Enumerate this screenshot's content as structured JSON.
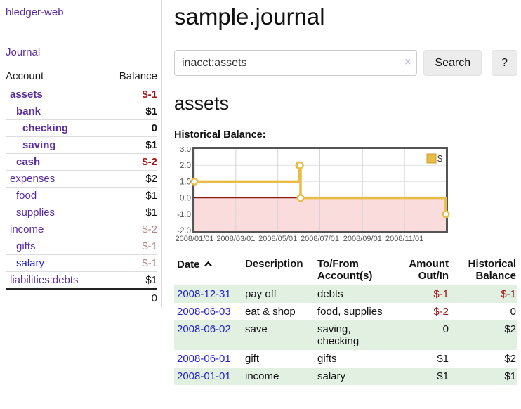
{
  "brand": "hledger-web",
  "nav": {
    "journal_label": "Journal"
  },
  "sidebar": {
    "headers": {
      "account": "Account",
      "balance": "Balance"
    },
    "accounts": [
      {
        "name": "assets",
        "balance": "$-1",
        "level": 0,
        "emph": true,
        "bal": "neg-strong"
      },
      {
        "name": "bank",
        "balance": "$1",
        "level": 1,
        "emph": true,
        "bal": "strong"
      },
      {
        "name": "checking",
        "balance": "0",
        "level": 2,
        "emph": true,
        "bal": "strong"
      },
      {
        "name": "saving",
        "balance": "$1",
        "level": 2,
        "emph": true,
        "bal": "strong"
      },
      {
        "name": "cash",
        "balance": "$-2",
        "level": 1,
        "emph": true,
        "bal": "neg-strong"
      },
      {
        "name": "expenses",
        "balance": "$2",
        "level": 0,
        "emph": false,
        "bal": "plain"
      },
      {
        "name": "food",
        "balance": "$1",
        "level": 1,
        "emph": false,
        "bal": "plain"
      },
      {
        "name": "supplies",
        "balance": "$1",
        "level": 1,
        "emph": false,
        "bal": "plain"
      },
      {
        "name": "income",
        "balance": "$-2",
        "level": 0,
        "emph": false,
        "bal": "neg-faint"
      },
      {
        "name": "gifts",
        "balance": "$-1",
        "level": 1,
        "emph": false,
        "bal": "neg-faint"
      },
      {
        "name": "salary",
        "balance": "$-1",
        "level": 1,
        "emph": false,
        "bal": "neg-faint",
        "link": "blue"
      },
      {
        "name": "liabilities:debts",
        "balance": "$1",
        "level": 0,
        "emph": false,
        "bal": "plain"
      }
    ],
    "total": "0"
  },
  "main": {
    "title": "sample.journal",
    "search": {
      "value": "inacct:assets",
      "clear_icon": "×",
      "search_label": "Search",
      "help_label": "?"
    },
    "heading": "assets",
    "chart_title": "Historical Balance:"
  },
  "chart_data": {
    "type": "line",
    "step": true,
    "title": "Historical Balance",
    "series": [
      {
        "name": "$",
        "color": "#e8bc45",
        "points": [
          [
            "2008-01-01",
            1
          ],
          [
            "2008-06-01",
            2
          ],
          [
            "2008-06-02",
            2
          ],
          [
            "2008-06-03",
            0
          ],
          [
            "2008-12-31",
            -1
          ]
        ]
      }
    ],
    "x_start": "2008-01-01",
    "x_end": "2008-12-31",
    "x_ticks": [
      "2008/01/01",
      "2008/03/01",
      "2008/05/01",
      "2008/07/01",
      "2008/09/01",
      "2008/11/01"
    ],
    "y_ticks": [
      3.0,
      2.0,
      1.0,
      0.0,
      -1.0,
      -2.0
    ],
    "ylim": [
      -2,
      3
    ],
    "grid": true,
    "legend_position": "top-right",
    "legend_label": "$",
    "colors": {
      "line": "#e8bc45",
      "marker_fill": "#ffffff",
      "negative_fill": "#fbdcdc",
      "zero_line": "#8f1414",
      "border": "#555555",
      "grid_h": "#e2e2e2",
      "grid_v": "#d6d6d6",
      "tick_text": "#555555"
    }
  },
  "register": {
    "headers": {
      "date": "Date",
      "description": "Description",
      "accounts": "To/From Account(s)",
      "amount": "Amount Out/In",
      "balance": "Historical Balance"
    },
    "rows": [
      {
        "date": "2008-12-31",
        "description": "pay off",
        "accounts": "debts",
        "amount": "$-1",
        "balance": "$-1",
        "amount_neg": true,
        "balance_neg": true
      },
      {
        "date": "2008-06-03",
        "description": "eat & shop",
        "accounts": "food, supplies",
        "amount": "$-2",
        "balance": "0",
        "amount_neg": true,
        "balance_neg": false
      },
      {
        "date": "2008-06-02",
        "description": "save",
        "accounts": "saving, checking",
        "amount": "0",
        "balance": "$2",
        "amount_neg": false,
        "balance_neg": false
      },
      {
        "date": "2008-06-01",
        "description": "gift",
        "accounts": "gifts",
        "amount": "$1",
        "balance": "$2",
        "amount_neg": false,
        "balance_neg": false
      },
      {
        "date": "2008-01-01",
        "description": "income",
        "accounts": "salary",
        "amount": "$1",
        "balance": "$1",
        "amount_neg": false,
        "balance_neg": false
      }
    ]
  }
}
